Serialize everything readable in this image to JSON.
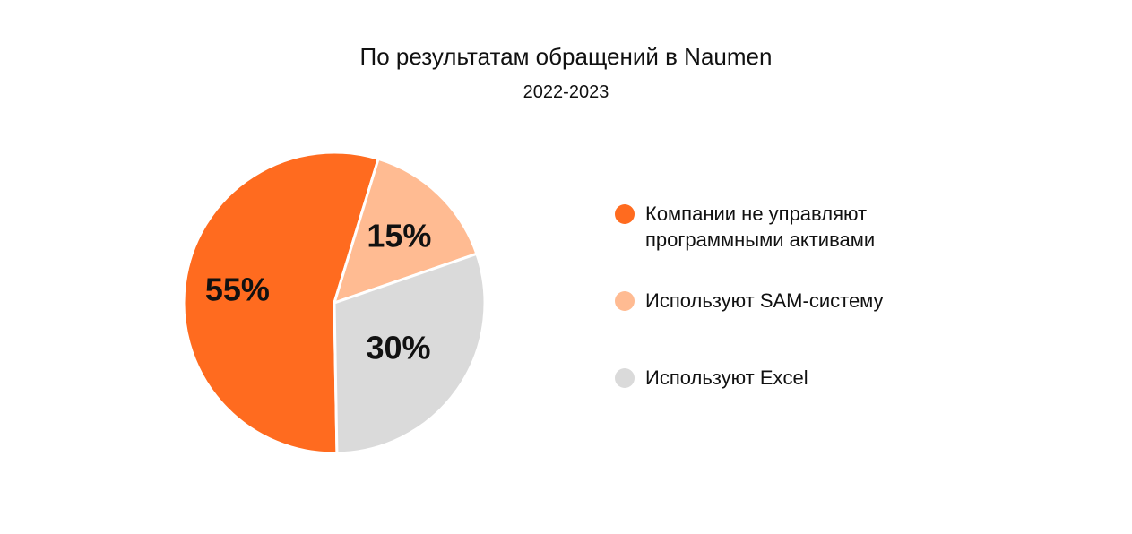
{
  "chart_data": {
    "type": "pie",
    "title": "По результатам обращений в Naumen",
    "subtitle": "2022-2023",
    "slices": [
      {
        "label": "Компании не управляют программными активами",
        "value": 55,
        "display": "55%",
        "color": "#FF6B1F"
      },
      {
        "label": "Используют SAM-систему",
        "value": 15,
        "display": "15%",
        "color": "#FFBB92"
      },
      {
        "label": "Используют Excel",
        "value": 30,
        "display": "30%",
        "color": "#DADADA"
      }
    ],
    "legend_position": "right"
  }
}
